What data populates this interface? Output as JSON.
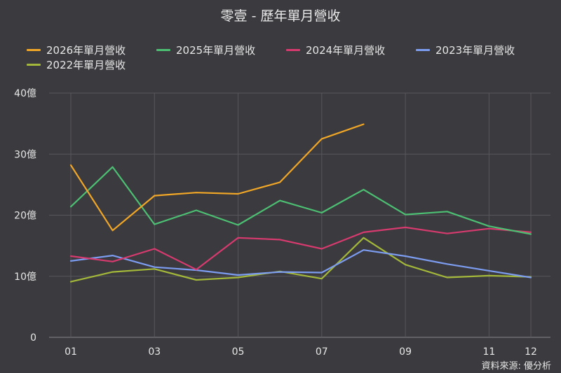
{
  "title": "零壹 - 歷年單月營收",
  "source": "資料來源: 優分析",
  "chart_data": {
    "type": "line",
    "title": "零壹 - 歷年單月營收",
    "x": [
      "01",
      "02",
      "03",
      "04",
      "05",
      "06",
      "07",
      "08",
      "09",
      "10",
      "11",
      "12"
    ],
    "x_tick_labels": [
      "01",
      "03",
      "05",
      "07",
      "09",
      "11",
      "12"
    ],
    "y_tick_labels": [
      "0",
      "10億",
      "20億",
      "30億",
      "40億"
    ],
    "ylim": [
      0,
      40
    ],
    "unit": "億",
    "grid": true,
    "legend_position": "top-left",
    "series": [
      {
        "name": "2026年單月營收",
        "color": "#f0a626",
        "values": [
          28.2,
          17.5,
          23.2,
          23.7,
          23.5,
          25.4,
          32.5,
          34.9,
          null,
          null,
          null,
          null
        ]
      },
      {
        "name": "2025年單月營收",
        "color": "#4cbf73",
        "values": [
          21.4,
          27.9,
          18.5,
          20.8,
          18.4,
          22.4,
          20.4,
          24.2,
          20.1,
          20.6,
          18.2,
          16.9
        ]
      },
      {
        "name": "2024年單月營收",
        "color": "#d63a6e",
        "values": [
          13.3,
          12.4,
          14.5,
          11.1,
          16.3,
          16.0,
          14.5,
          17.2,
          18.0,
          17.0,
          17.8,
          17.2
        ]
      },
      {
        "name": "2023年單月營收",
        "color": "#7c9cf0",
        "values": [
          12.5,
          13.4,
          11.5,
          11.0,
          10.2,
          10.7,
          10.6,
          14.3,
          13.3,
          12.0,
          10.9,
          9.8
        ]
      },
      {
        "name": "2022年單月營收",
        "color": "#a3b83a",
        "values": [
          9.1,
          10.7,
          11.2,
          9.4,
          9.8,
          10.8,
          9.6,
          16.3,
          11.9,
          9.8,
          10.1,
          9.9
        ]
      }
    ]
  }
}
